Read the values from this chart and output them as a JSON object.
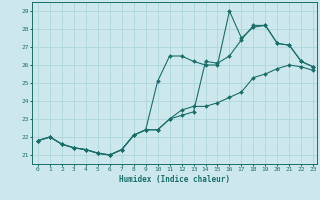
{
  "xlabel": "Humidex (Indice chaleur)",
  "xlim": [
    -0.5,
    23.3
  ],
  "ylim": [
    20.5,
    29.5
  ],
  "xticks": [
    0,
    1,
    2,
    3,
    4,
    5,
    6,
    7,
    8,
    9,
    10,
    11,
    12,
    13,
    14,
    15,
    16,
    17,
    18,
    19,
    20,
    21,
    22,
    23
  ],
  "yticks": [
    21,
    22,
    23,
    24,
    25,
    26,
    27,
    28,
    29
  ],
  "bg_color": "#cce8ec",
  "line_color": "#1a6e6a",
  "grid_color": "#a8d4d8",
  "line1_x": [
    0,
    1,
    2,
    3,
    4,
    5,
    6,
    7,
    8,
    9,
    10,
    11,
    12,
    13,
    14,
    15,
    16,
    17,
    18,
    19,
    20,
    21,
    22,
    23
  ],
  "line1_y": [
    21.8,
    22.0,
    21.6,
    21.4,
    21.3,
    21.1,
    21.0,
    21.3,
    22.1,
    22.4,
    25.1,
    26.5,
    26.5,
    26.2,
    26.0,
    26.0,
    29.0,
    27.5,
    28.1,
    28.2,
    27.2,
    27.1,
    26.2,
    25.9
  ],
  "line2_x": [
    0,
    1,
    2,
    3,
    4,
    5,
    6,
    7,
    8,
    9,
    10,
    11,
    12,
    13,
    14,
    15,
    16,
    17,
    18,
    19,
    20,
    21,
    22,
    23
  ],
  "line2_y": [
    21.8,
    22.0,
    21.6,
    21.4,
    21.3,
    21.1,
    21.0,
    21.3,
    22.1,
    22.4,
    22.4,
    23.0,
    23.2,
    23.4,
    26.2,
    26.1,
    26.5,
    27.4,
    28.2,
    28.2,
    27.2,
    27.1,
    26.2,
    25.9
  ],
  "line3_x": [
    0,
    1,
    2,
    3,
    4,
    5,
    6,
    7,
    8,
    9,
    10,
    11,
    12,
    13,
    14,
    15,
    16,
    17,
    18,
    19,
    20,
    21,
    22,
    23
  ],
  "line3_y": [
    21.8,
    22.0,
    21.6,
    21.4,
    21.3,
    21.1,
    21.0,
    21.3,
    22.1,
    22.4,
    22.4,
    23.0,
    23.5,
    23.7,
    23.7,
    23.9,
    24.2,
    24.5,
    25.3,
    25.5,
    25.8,
    26.0,
    25.9,
    25.7
  ]
}
